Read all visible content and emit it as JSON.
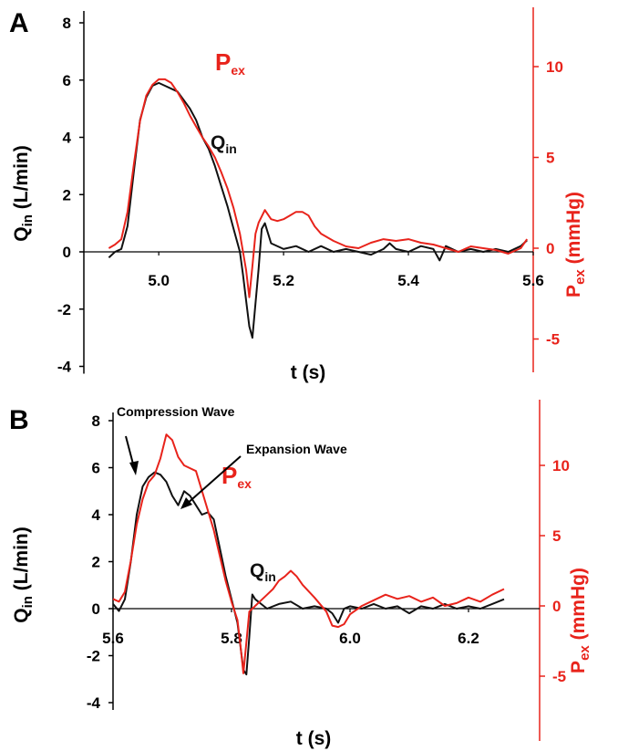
{
  "colors": {
    "qin": "#111111",
    "pex": "#e8231b",
    "axis_black": "#000000",
    "axis_red": "#e8231b"
  },
  "chart_data": [
    {
      "type": "line",
      "panel_label": "A",
      "xlabel": "t (s)",
      "ylabel": {
        "main": "Q",
        "sub": "in",
        "tail": " (L/min)"
      },
      "y2label": {
        "main": "P",
        "sub": "ex",
        "tail": " (mmHg)"
      },
      "xlim": [
        4.88,
        5.6
      ],
      "ylim": [
        -4,
        8.5
      ],
      "y2lim": [
        -7,
        13
      ],
      "xticks": [
        5.0,
        5.2,
        5.4,
        5.6
      ],
      "xtick_labels": [
        "5.0",
        "5.2",
        "5.4",
        "5.6"
      ],
      "yticks": [
        -4,
        -2,
        0,
        2,
        4,
        6,
        8
      ],
      "ytick_labels": [
        "-4",
        "-2",
        "0",
        "2",
        "4",
        "6",
        "8"
      ],
      "y2ticks": [
        -5,
        0,
        5,
        10
      ],
      "y2tick_labels": [
        "-5",
        "0",
        "5",
        "10"
      ],
      "series": [
        {
          "name": "Qin",
          "label": {
            "main": "Q",
            "sub": "in"
          },
          "axis": "left",
          "x": [
            4.92,
            4.93,
            4.94,
            4.95,
            4.96,
            4.97,
            4.98,
            4.99,
            5.0,
            5.01,
            5.02,
            5.03,
            5.04,
            5.05,
            5.06,
            5.07,
            5.08,
            5.09,
            5.1,
            5.11,
            5.12,
            5.13,
            5.135,
            5.14,
            5.145,
            5.15,
            5.16,
            5.165,
            5.17,
            5.18,
            5.2,
            5.22,
            5.24,
            5.26,
            5.28,
            5.3,
            5.32,
            5.34,
            5.36,
            5.37,
            5.38,
            5.4,
            5.42,
            5.44,
            5.45,
            5.46,
            5.48,
            5.5,
            5.52,
            5.54,
            5.56,
            5.58,
            5.59
          ],
          "y": [
            -0.2,
            0.0,
            0.1,
            0.9,
            2.8,
            4.6,
            5.4,
            5.8,
            5.9,
            5.8,
            5.7,
            5.6,
            5.3,
            5.0,
            4.6,
            4.0,
            3.6,
            3.0,
            2.3,
            1.6,
            0.8,
            0.0,
            -0.8,
            -1.7,
            -2.6,
            -3.0,
            -0.6,
            0.8,
            1.0,
            0.3,
            0.1,
            0.2,
            0.0,
            0.2,
            0.0,
            0.1,
            0.0,
            -0.1,
            0.1,
            0.3,
            0.1,
            0.0,
            0.2,
            0.1,
            -0.3,
            0.2,
            0.0,
            0.1,
            0.0,
            0.1,
            0.0,
            0.2,
            0.4
          ]
        },
        {
          "name": "Pex",
          "label": {
            "main": "P",
            "sub": "ex"
          },
          "axis": "right",
          "x": [
            4.92,
            4.93,
            4.94,
            4.95,
            4.96,
            4.97,
            4.98,
            4.99,
            5.0,
            5.01,
            5.02,
            5.03,
            5.04,
            5.05,
            5.06,
            5.07,
            5.08,
            5.09,
            5.1,
            5.11,
            5.12,
            5.13,
            5.14,
            5.145,
            5.15,
            5.155,
            5.16,
            5.17,
            5.18,
            5.19,
            5.2,
            5.21,
            5.22,
            5.23,
            5.24,
            5.25,
            5.26,
            5.28,
            5.3,
            5.32,
            5.34,
            5.36,
            5.38,
            5.4,
            5.42,
            5.44,
            5.46,
            5.48,
            5.5,
            5.52,
            5.54,
            5.56,
            5.58,
            5.59
          ],
          "y": [
            0.0,
            0.2,
            0.5,
            2.0,
            4.6,
            7.0,
            8.4,
            9.0,
            9.3,
            9.3,
            9.1,
            8.6,
            8.0,
            7.3,
            6.7,
            6.1,
            5.6,
            5.0,
            4.2,
            3.3,
            2.2,
            0.8,
            -1.2,
            -2.7,
            -1.0,
            0.8,
            1.4,
            2.1,
            1.6,
            1.5,
            1.6,
            1.8,
            2.0,
            2.0,
            1.8,
            1.2,
            0.8,
            0.4,
            0.1,
            0.0,
            0.3,
            0.5,
            0.4,
            0.5,
            0.3,
            0.2,
            0.0,
            -0.2,
            0.1,
            0.0,
            -0.1,
            -0.3,
            0.0,
            0.5
          ]
        }
      ]
    },
    {
      "type": "line",
      "panel_label": "B",
      "xlabel": "t (s)",
      "ylabel": {
        "main": "Q",
        "sub": "in",
        "tail": " (L/min)"
      },
      "y2label": {
        "main": "P",
        "sub": "ex",
        "tail": " (mmHg)"
      },
      "xlim": [
        5.6,
        6.32
      ],
      "ylim": [
        -4,
        8.5
      ],
      "y2lim": [
        -7,
        13
      ],
      "xticks": [
        5.6,
        5.8,
        6.0,
        6.2
      ],
      "xtick_labels": [
        "5.6",
        "5.8",
        "6.0",
        "6.2"
      ],
      "yticks": [
        -4,
        -2,
        0,
        2,
        4,
        6,
        8
      ],
      "ytick_labels": [
        "-4",
        "-2",
        "0",
        "2",
        "4",
        "6",
        "8"
      ],
      "y2ticks": [
        -5,
        0,
        5,
        10
      ],
      "y2tick_labels": [
        "-5",
        "0",
        "5",
        "10"
      ],
      "annotations": [
        "Compression Wave",
        "Expansion Wave"
      ],
      "series": [
        {
          "name": "Qin",
          "label": {
            "main": "Q",
            "sub": "in"
          },
          "axis": "left",
          "x": [
            5.6,
            5.61,
            5.62,
            5.63,
            5.64,
            5.65,
            5.66,
            5.67,
            5.68,
            5.69,
            5.7,
            5.71,
            5.72,
            5.73,
            5.74,
            5.75,
            5.76,
            5.77,
            5.78,
            5.79,
            5.8,
            5.81,
            5.815,
            5.82,
            5.825,
            5.83,
            5.835,
            5.84,
            5.85,
            5.86,
            5.88,
            5.9,
            5.92,
            5.94,
            5.96,
            5.97,
            5.98,
            5.99,
            6.0,
            6.02,
            6.04,
            6.06,
            6.08,
            6.1,
            6.12,
            6.14,
            6.16,
            6.18,
            6.2,
            6.22,
            6.24,
            6.26
          ],
          "y": [
            0.2,
            -0.1,
            0.4,
            2.0,
            4.0,
            5.2,
            5.6,
            5.8,
            5.7,
            5.4,
            4.8,
            4.4,
            5.0,
            4.8,
            4.4,
            4.0,
            4.1,
            3.8,
            2.6,
            1.4,
            0.4,
            -0.6,
            -1.6,
            -2.6,
            -2.8,
            -1.2,
            0.6,
            0.4,
            0.2,
            0.0,
            0.2,
            0.3,
            0.0,
            0.1,
            0.0,
            -0.2,
            -0.6,
            0.0,
            0.1,
            0.0,
            0.2,
            0.0,
            0.1,
            -0.2,
            0.1,
            0.0,
            0.2,
            0.0,
            0.1,
            0.0,
            0.2,
            0.4
          ]
        },
        {
          "name": "Pex",
          "label": {
            "main": "P",
            "sub": "ex"
          },
          "axis": "right",
          "x": [
            5.6,
            5.61,
            5.62,
            5.63,
            5.64,
            5.65,
            5.66,
            5.67,
            5.68,
            5.69,
            5.7,
            5.71,
            5.72,
            5.73,
            5.74,
            5.75,
            5.76,
            5.77,
            5.78,
            5.79,
            5.8,
            5.81,
            5.815,
            5.82,
            5.825,
            5.83,
            5.84,
            5.85,
            5.86,
            5.87,
            5.88,
            5.89,
            5.9,
            5.91,
            5.92,
            5.94,
            5.96,
            5.97,
            5.98,
            5.99,
            6.0,
            6.02,
            6.04,
            6.06,
            6.08,
            6.1,
            6.12,
            6.14,
            6.16,
            6.18,
            6.2,
            6.22,
            6.24,
            6.26
          ],
          "y": [
            0.5,
            0.3,
            1.0,
            3.2,
            5.8,
            7.6,
            8.8,
            9.3,
            10.5,
            12.2,
            11.8,
            10.6,
            10.0,
            9.8,
            9.6,
            8.2,
            6.8,
            5.4,
            3.6,
            1.8,
            0.3,
            -1.0,
            -2.8,
            -4.8,
            -2.6,
            -0.4,
            0.0,
            0.4,
            0.8,
            1.2,
            1.8,
            2.1,
            2.5,
            2.1,
            1.5,
            0.6,
            -0.4,
            -1.4,
            -1.5,
            -1.3,
            -0.6,
            0.0,
            0.4,
            0.8,
            0.5,
            0.7,
            0.3,
            0.6,
            0.0,
            0.2,
            0.6,
            0.3,
            0.8,
            1.2
          ]
        }
      ]
    }
  ]
}
